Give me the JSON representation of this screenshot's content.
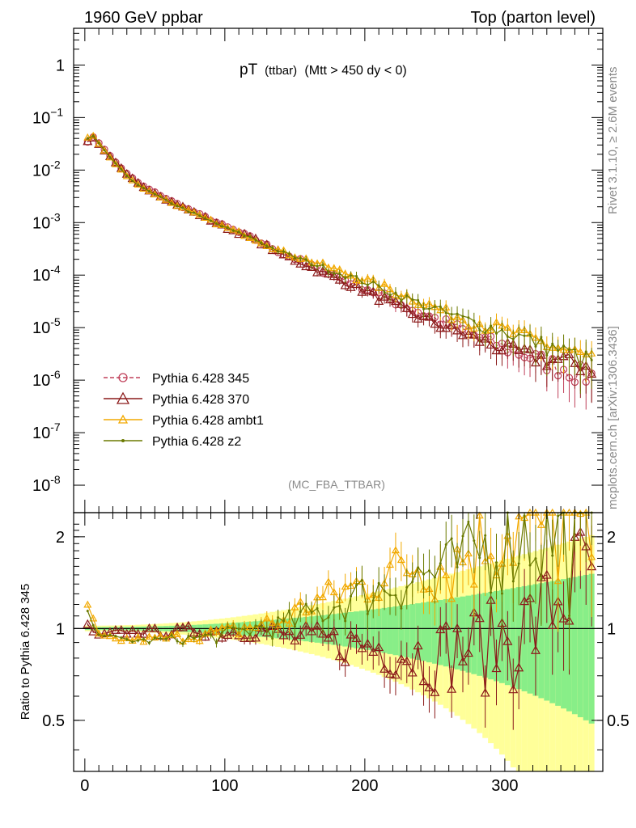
{
  "header": {
    "left": "1960 GeV ppbar",
    "right": "Top (parton level)"
  },
  "side_labels": {
    "rivet": "Rivet 3.1.10, ≥ 2.6M events",
    "mcplots": "mcplots.cern.ch [arXiv:1306.3436]"
  },
  "colors": {
    "p345": "#c0405a",
    "p370": "#8b1a1a",
    "ambt1": "#f2a900",
    "z2": "#6b7a00",
    "band_yellow": "#ffff99",
    "band_green": "#88ee88"
  },
  "chart_data": [
    {
      "type": "scatter",
      "title_main": "pT",
      "title_sub": "(ttbar)",
      "title_rest": "(Mtt > 450 dy < 0)",
      "analysis_label": "(MC_FBA_TTBAR)",
      "ylabel": "",
      "y_scale": "log",
      "xlim": [
        -8,
        370
      ],
      "ylim": [
        3e-09,
        5
      ],
      "y_ticks": [
        {
          "value": 1,
          "label": "1",
          "exp": ""
        },
        {
          "value": 0.1,
          "label": "10",
          "exp": "−1"
        },
        {
          "value": 0.01,
          "label": "10",
          "exp": "-2"
        },
        {
          "value": 0.001,
          "label": "10",
          "exp": "-3"
        },
        {
          "value": 0.0001,
          "label": "10",
          "exp": "-4"
        },
        {
          "value": 1e-05,
          "label": "10",
          "exp": "-5"
        },
        {
          "value": 1e-06,
          "label": "10",
          "exp": "-6"
        },
        {
          "value": 1e-07,
          "label": "10",
          "exp": "-7"
        },
        {
          "value": 1e-08,
          "label": "10",
          "exp": "-8"
        }
      ],
      "legend_position": "bottom-left",
      "legend": [
        {
          "key": "p345",
          "label": "Pythia 6.428 345",
          "marker": "circle",
          "dashed": true
        },
        {
          "key": "p370",
          "label": "Pythia 6.428 370",
          "marker": "triangle",
          "dashed": false
        },
        {
          "key": "ambt1",
          "label": "Pythia 6.428 ambt1",
          "marker": "triangle-small",
          "dashed": false
        },
        {
          "key": "z2",
          "label": "Pythia 6.428 z2",
          "marker": "dot",
          "dashed": false
        }
      ],
      "bin_width": 4,
      "reference_curve": {
        "x": [
          2,
          6,
          10,
          14,
          20,
          30,
          40,
          60,
          80,
          100,
          120,
          140,
          160,
          180,
          200,
          220,
          240,
          260,
          280,
          300,
          320,
          340,
          360
        ],
        "y": [
          0.035,
          0.042,
          0.033,
          0.025,
          0.016,
          0.0085,
          0.0052,
          0.0027,
          0.0015,
          0.00085,
          0.0005,
          0.00027,
          0.00016,
          9.5e-05,
          5.8e-05,
          3.3e-05,
          1.9e-05,
          1.15e-05,
          6.8e-06,
          4.2e-06,
          2.7e-06,
          1.8e-06,
          1.2e-06
        ]
      }
    },
    {
      "type": "scatter",
      "ylabel": "Ratio to Pythia 6.428 345",
      "xlim": [
        -8,
        370
      ],
      "ylim": [
        0.34,
        2.4
      ],
      "y_scale": "log",
      "y_ticks": [
        {
          "value": 0.5,
          "label": "0.5"
        },
        {
          "value": 1,
          "label": "1"
        },
        {
          "value": 2,
          "label": "2"
        }
      ],
      "x_ticks": [
        {
          "value": 0,
          "label": "0"
        },
        {
          "value": 100,
          "label": "100"
        },
        {
          "value": 200,
          "label": "200"
        },
        {
          "value": 300,
          "label": "300"
        }
      ],
      "series_ratio_trend": {
        "x": [
          2,
          10,
          20,
          40,
          60,
          80,
          100,
          120,
          140,
          160,
          180,
          200,
          220,
          240,
          260,
          280,
          300,
          320,
          340,
          360
        ],
        "p370": [
          1.02,
          0.94,
          0.97,
          0.98,
          0.97,
          0.99,
          0.97,
          1.0,
          0.95,
          0.92,
          0.9,
          0.88,
          0.86,
          0.82,
          0.85,
          0.9,
          0.95,
          1.05,
          1.3,
          1.6
        ],
        "ambt1": [
          1.18,
          0.95,
          0.92,
          0.92,
          0.93,
          0.95,
          0.97,
          1.02,
          1.05,
          1.2,
          1.3,
          1.4,
          1.55,
          1.65,
          1.6,
          1.9,
          2.1,
          2.2,
          2.2,
          2.2
        ],
        "z2": [
          1.12,
          0.97,
          0.93,
          0.91,
          0.92,
          0.93,
          0.95,
          1.0,
          1.02,
          1.1,
          1.2,
          1.3,
          1.4,
          1.5,
          1.55,
          1.8,
          2.0,
          2.1,
          2.1,
          2.0
        ]
      }
    }
  ]
}
